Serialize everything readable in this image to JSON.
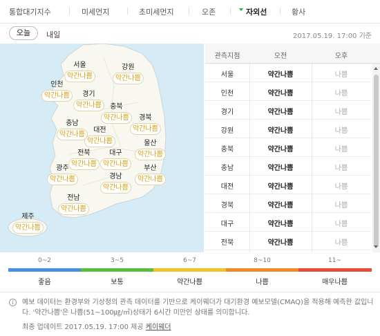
{
  "tabs": [
    {
      "label": "통합대기지수",
      "active": false
    },
    {
      "label": "미세먼지",
      "active": false
    },
    {
      "label": "초미세먼지",
      "active": false
    },
    {
      "label": "오존",
      "active": false
    },
    {
      "label": "자외선",
      "active": true
    },
    {
      "label": "황사",
      "active": false
    }
  ],
  "days": {
    "today": "오늘",
    "tomorrow": "내일"
  },
  "updated_at": "2017.05.19. 17:00 기준",
  "map": {
    "regions": [
      {
        "name": "서울",
        "value": "약간나쁨"
      },
      {
        "name": "강원",
        "value": "약간나쁨"
      },
      {
        "name": "인천",
        "value": "약간나쁨"
      },
      {
        "name": "경기",
        "value": "약간나쁨"
      },
      {
        "name": "충북",
        "value": "약간나쁨"
      },
      {
        "name": "충남",
        "value": "약간나쁨"
      },
      {
        "name": "대전",
        "value": "약간나쁨"
      },
      {
        "name": "경북",
        "value": "약간나쁨"
      },
      {
        "name": "울산",
        "value": "약간나쁨"
      },
      {
        "name": "전북",
        "value": "약간나쁨"
      },
      {
        "name": "대구",
        "value": "약간나쁨"
      },
      {
        "name": "광주",
        "value": "약간나쁨"
      },
      {
        "name": "부산",
        "value": "약간나쁨"
      },
      {
        "name": "경남",
        "value": "약간나쁨"
      },
      {
        "name": "전남",
        "value": "약간나쁨"
      },
      {
        "name": "제주",
        "value": "약간나쁨"
      }
    ]
  },
  "table": {
    "headers": {
      "station": "관측지점",
      "am": "오전",
      "pm": "오후"
    },
    "rows": [
      {
        "name": "서울",
        "am": "약간나쁨",
        "pm": "나쁨"
      },
      {
        "name": "인천",
        "am": "약간나쁨",
        "pm": "나쁨"
      },
      {
        "name": "경기",
        "am": "약간나쁨",
        "pm": "나쁨"
      },
      {
        "name": "강원",
        "am": "약간나쁨",
        "pm": "나쁨"
      },
      {
        "name": "충북",
        "am": "약간나쁨",
        "pm": "나쁨"
      },
      {
        "name": "충남",
        "am": "약간나쁨",
        "pm": "나쁨"
      },
      {
        "name": "대전",
        "am": "약간나쁨",
        "pm": "나쁨"
      },
      {
        "name": "경북",
        "am": "약간나쁨",
        "pm": "나쁨"
      },
      {
        "name": "대구",
        "am": "약간나쁨",
        "pm": "나쁨"
      },
      {
        "name": "전북",
        "am": "약간나쁨",
        "pm": "나쁨"
      }
    ]
  },
  "legend": [
    {
      "range": "0~2",
      "label": "좋음",
      "color": "#4a90e2"
    },
    {
      "range": "3~5",
      "label": "보통",
      "color": "#5cbf3a"
    },
    {
      "range": "6~7",
      "label": "약간나쁨",
      "color": "#f2c12e"
    },
    {
      "range": "8~10",
      "label": "나쁨",
      "color": "#f08a24"
    },
    {
      "range": "11~",
      "label": "매우나쁨",
      "color": "#e84c3d"
    }
  ],
  "info": {
    "text": "예보 데이터는 환경부와 기상청의 관측 데이터를 기반으로 케이웨더가 대기환경 예보모델(CMAQ)을 적용해 예측한 값입니다. '약간나쁨'은 나쁨(51~100㎍/㎥)상태가 6시간 미만인 상태를 의미합니다.",
    "footer_prefix": "최종 업데이트 2017.05.19. 17:00 제공",
    "provider": "케이웨더"
  }
}
